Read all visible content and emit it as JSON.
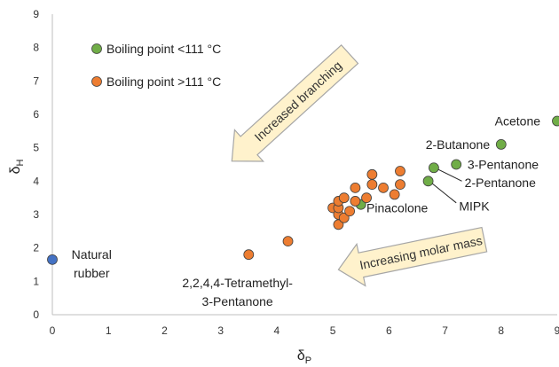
{
  "chart_data": {
    "type": "scatter",
    "xlim": [
      0,
      9
    ],
    "ylim": [
      0,
      9
    ],
    "x_ticks": [
      0,
      1,
      2,
      3,
      4,
      5,
      6,
      7,
      8,
      9
    ],
    "y_ticks": [
      0,
      1,
      2,
      3,
      4,
      5,
      6,
      7,
      8,
      9
    ],
    "xlabel_main": "δ",
    "xlabel_sub": "P",
    "ylabel_main": "δ",
    "ylabel_sub": "H",
    "grid": false,
    "legend_placement": "top-left",
    "series": [
      {
        "name": "Boiling point <111 °C",
        "color": "#70ad47",
        "points": [
          {
            "x": 9.0,
            "y": 5.8
          },
          {
            "x": 8.0,
            "y": 5.1
          },
          {
            "x": 7.2,
            "y": 4.5
          },
          {
            "x": 6.8,
            "y": 4.4
          },
          {
            "x": 6.7,
            "y": 4.0
          },
          {
            "x": 5.5,
            "y": 3.3
          }
        ]
      },
      {
        "name": "Boiling point >111 °C",
        "color": "#ed7d31",
        "points": [
          {
            "x": 3.5,
            "y": 1.8
          },
          {
            "x": 4.2,
            "y": 2.2
          },
          {
            "x": 5.0,
            "y": 3.2
          },
          {
            "x": 5.1,
            "y": 2.7
          },
          {
            "x": 5.1,
            "y": 3.0
          },
          {
            "x": 5.1,
            "y": 3.2
          },
          {
            "x": 5.2,
            "y": 2.9
          },
          {
            "x": 5.1,
            "y": 3.4
          },
          {
            "x": 5.2,
            "y": 3.5
          },
          {
            "x": 5.3,
            "y": 3.1
          },
          {
            "x": 5.4,
            "y": 3.8
          },
          {
            "x": 5.4,
            "y": 3.4
          },
          {
            "x": 5.6,
            "y": 3.5
          },
          {
            "x": 5.7,
            "y": 3.9
          },
          {
            "x": 5.7,
            "y": 4.2
          },
          {
            "x": 5.9,
            "y": 3.8
          },
          {
            "x": 6.1,
            "y": 3.6
          },
          {
            "x": 6.2,
            "y": 3.9
          },
          {
            "x": 6.2,
            "y": 4.3
          }
        ]
      },
      {
        "name": "",
        "color": "#4472c4",
        "points": [
          {
            "x": 0.0,
            "y": 1.65
          }
        ]
      }
    ],
    "annotations": [
      {
        "id": "acetone",
        "text": "Acetone",
        "x": 8.7,
        "y": 5.8,
        "anchor": "end"
      },
      {
        "id": "butanone",
        "text": "2-Butanone",
        "x": 7.8,
        "y": 5.1,
        "anchor": "end"
      },
      {
        "id": "pentanone3",
        "text": "3-Pentanone",
        "x": 7.4,
        "y": 4.5,
        "anchor": "start"
      },
      {
        "id": "pentanone2",
        "text": "2-Pentanone",
        "x": 7.35,
        "y": 3.95,
        "anchor": "start"
      },
      {
        "id": "mipk",
        "text": "MIPK",
        "x": 7.25,
        "y": 3.25,
        "anchor": "start"
      },
      {
        "id": "pinacolone",
        "text": "Pinacolone",
        "x": 5.6,
        "y": 3.2,
        "anchor": "start"
      },
      {
        "id": "rubber1",
        "text": "Natural",
        "x": 0.7,
        "y": 1.8,
        "anchor": "middle"
      },
      {
        "id": "rubber2",
        "text": "rubber",
        "x": 0.7,
        "y": 1.25,
        "anchor": "middle"
      },
      {
        "id": "tmp1",
        "text": "2,2,4,4-Tetramethyl-",
        "x": 3.3,
        "y": 0.95,
        "anchor": "middle"
      },
      {
        "id": "tmp2",
        "text": "3-Pentanone",
        "x": 3.3,
        "y": 0.4,
        "anchor": "middle"
      }
    ],
    "leader_lines": [
      {
        "from": [
          6.82,
          4.4
        ],
        "to": [
          7.3,
          4.0
        ]
      },
      {
        "from": [
          6.72,
          4.0
        ],
        "to": [
          7.2,
          3.35
        ]
      }
    ],
    "arrows": [
      {
        "id": "branching",
        "text": "Increased branching",
        "from": [
          5.3,
          7.8
        ],
        "to": [
          3.2,
          4.6
        ]
      },
      {
        "id": "molar",
        "text": "Increasing molar mass",
        "from": [
          7.7,
          2.25
        ],
        "to": [
          5.1,
          1.35
        ]
      }
    ]
  }
}
